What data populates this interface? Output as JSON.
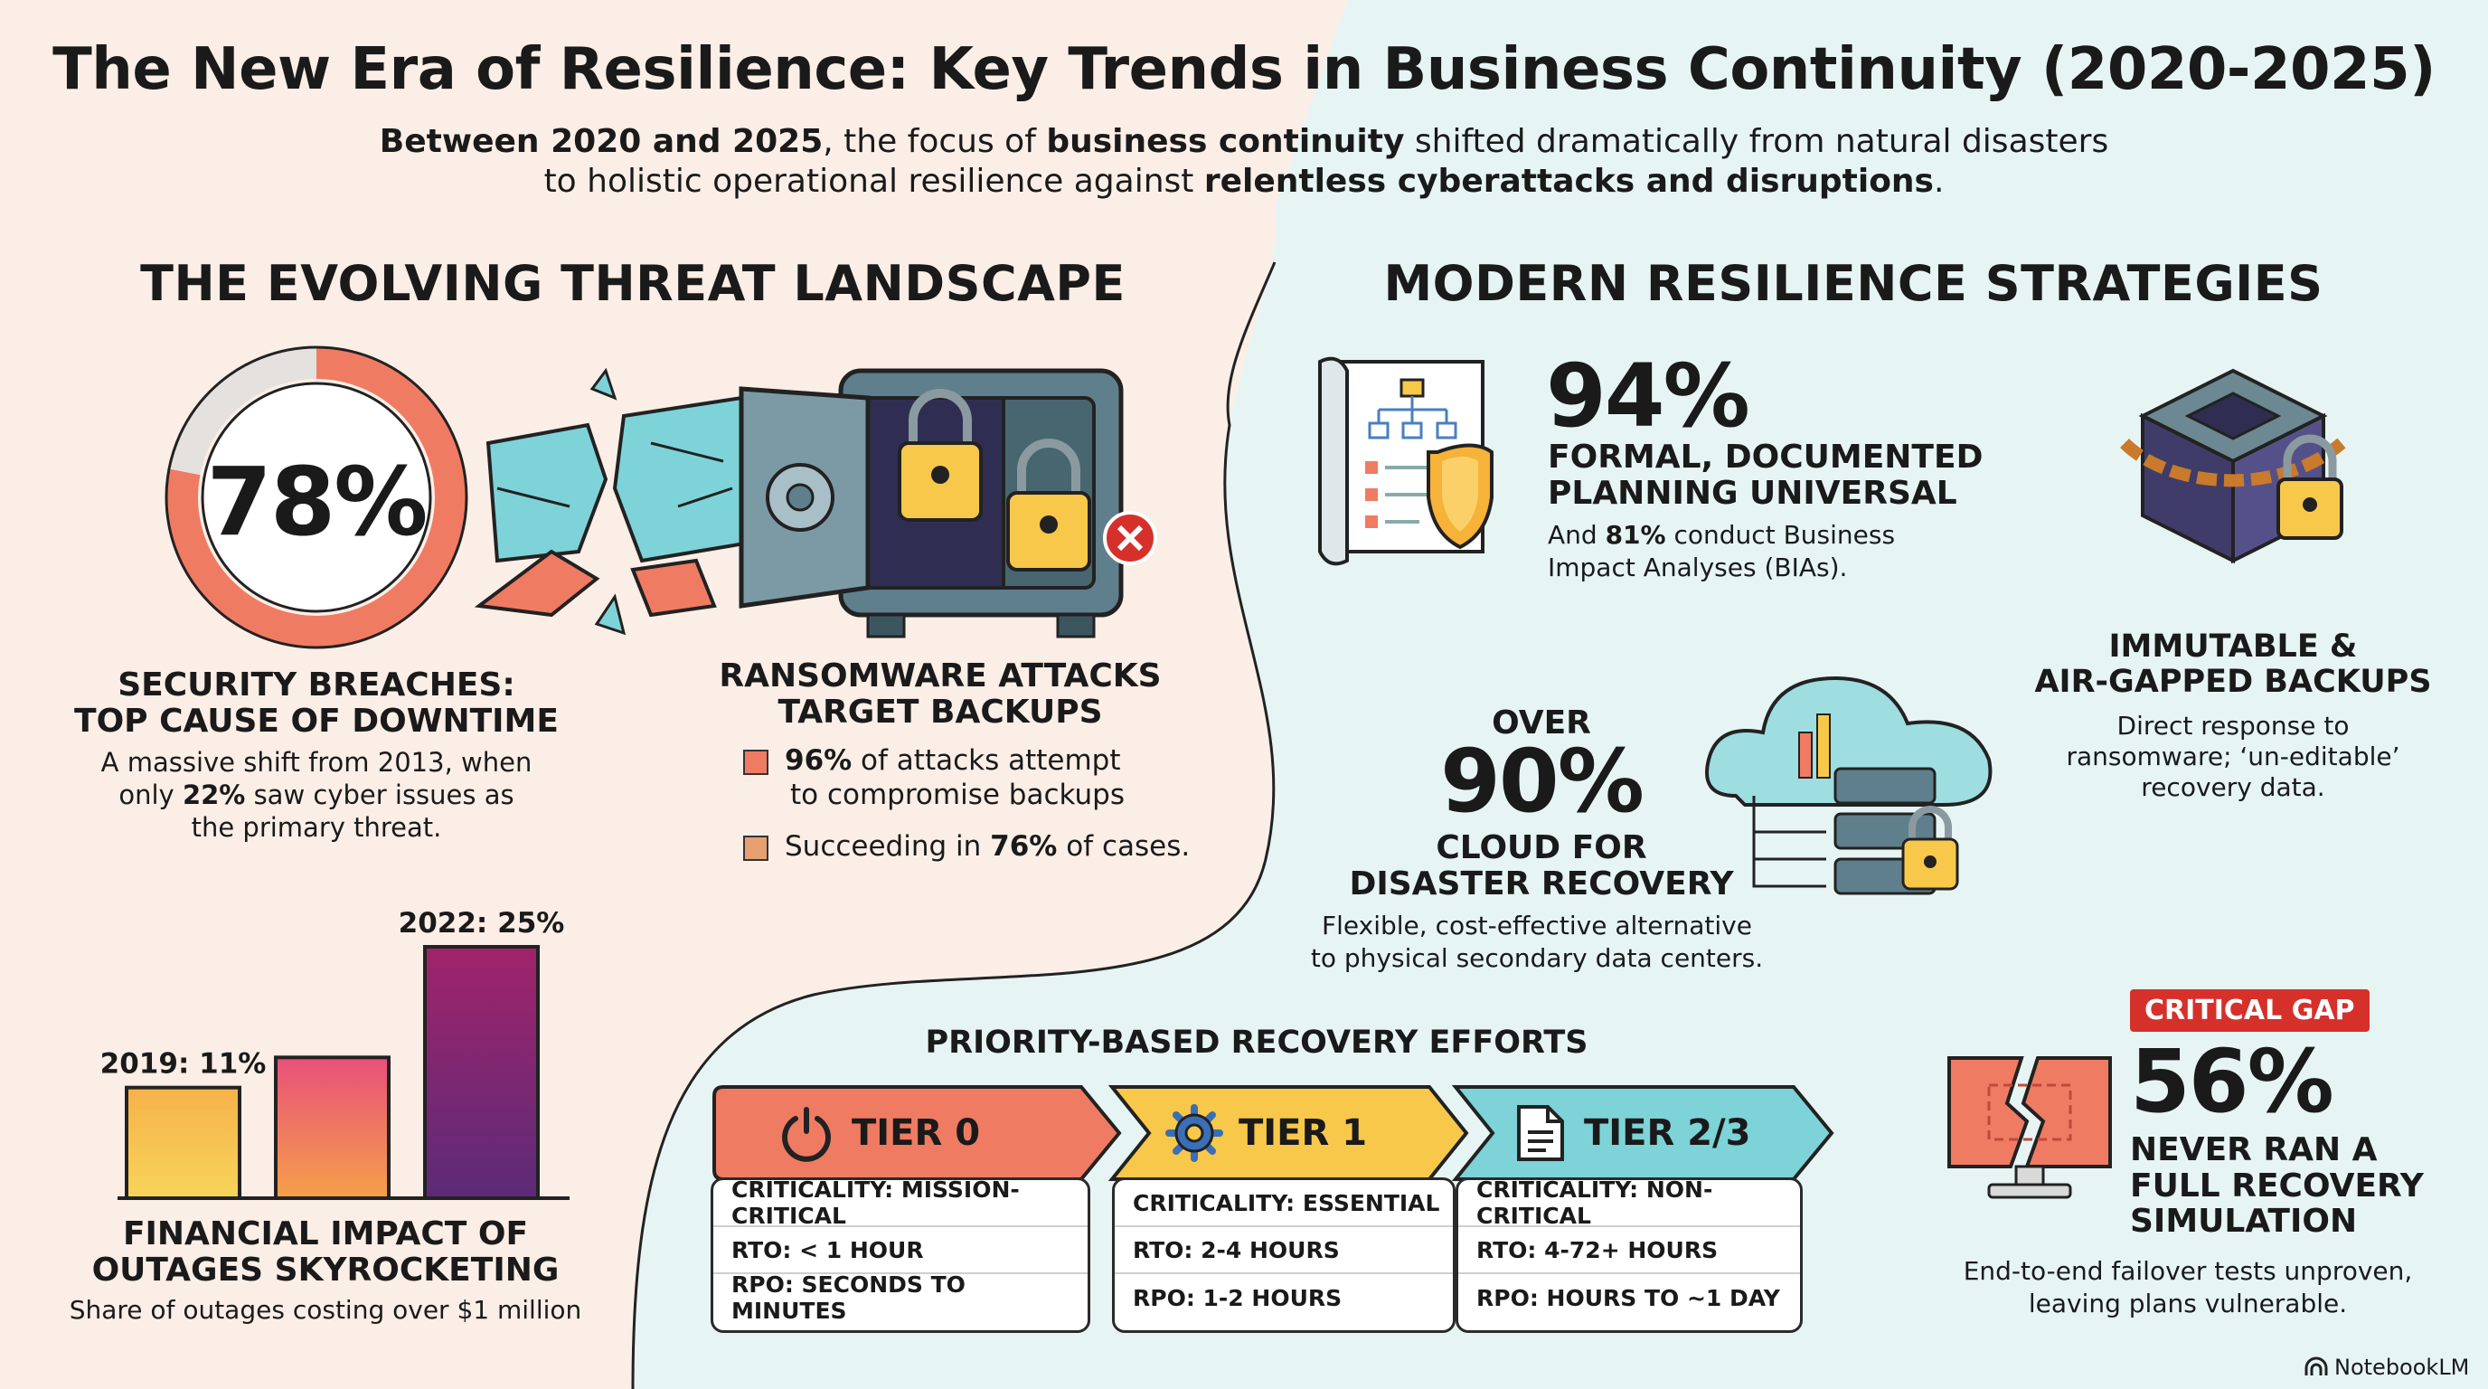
{
  "header": {
    "title": "The New Era of Resilience: Key Trends in Business Continuity (2020-2025)",
    "subtitle_line1": {
      "p1": "Between 2020 and 2025",
      "p2": ", the focus of ",
      "p3": "business continuity",
      "p4": " shifted dramatically from natural disasters"
    },
    "subtitle_line2": {
      "p1": "to holistic operational resilience against ",
      "p2": "relentless cyberattacks and disruptions",
      "p3": "."
    }
  },
  "left_section": {
    "heading": "THE EVOLVING THREAT LANDSCAPE",
    "donut": {
      "value_label": "78%",
      "fraction": 0.78
    },
    "security": {
      "heading_line1": "SECURITY BREACHES:",
      "heading_line2": "TOP CAUSE OF DOWNTIME",
      "text_line1": "A massive shift from 2013, when",
      "text_line2_a": "only ",
      "text_line2_b": "22%",
      "text_line2_c": " saw cyber issues as",
      "text_line3": "the primary threat."
    },
    "ransomware": {
      "heading_line1": "RANSOMWARE ATTACKS",
      "heading_line2": "TARGET BACKUPS",
      "bullet1_a": "96%",
      "bullet1_b": " of attacks attempt",
      "bullet1_line2": "to compromise backups",
      "bullet2_a": "Succeeding in ",
      "bullet2_b": "76%",
      "bullet2_c": " of cases."
    },
    "financial": {
      "bars": [
        {
          "label": "2019: 11%",
          "value": 11
        },
        {
          "label": "",
          "value": 14
        },
        {
          "label": "2022: 25%",
          "value": 25
        }
      ],
      "heading_line1": "FINANCIAL IMPACT OF",
      "heading_line2": "OUTAGES SKYROCKETING",
      "caption": "Share of outages costing over $1 million"
    }
  },
  "right_section": {
    "heading": "MODERN RESILIENCE STRATEGIES",
    "planning": {
      "value": "94%",
      "heading_line1": "FORMAL, DOCUMENTED",
      "heading_line2": "PLANNING UNIVERSAL",
      "text_line1_a": "And ",
      "text_line1_b": "81%",
      "text_line1_c": " conduct Business",
      "text_line2": "Impact Analyses (BIAs)."
    },
    "immutable": {
      "heading_line1": "IMMUTABLE &",
      "heading_line2": "AIR-GAPPED BACKUPS",
      "text_line1": "Direct response to",
      "text_line2": "ransomware; ‘un-editable’",
      "text_line3": "recovery data."
    },
    "cloud": {
      "over": "OVER",
      "value": "90%",
      "heading_line1": "CLOUD FOR",
      "heading_line2": "DISASTER RECOVERY",
      "text_line1": "Flexible, cost-effective alternative",
      "text_line2": "to physical secondary data centers."
    }
  },
  "priority": {
    "heading": "PRIORITY-BASED RECOVERY EFFORTS",
    "tiers": [
      {
        "name": "TIER 0",
        "icon": "power-icon",
        "color": "#f07b63",
        "criticality": "CRITICALITY: MISSION-CRITICAL",
        "rto": "RTO: < 1 HOUR",
        "rpo": "RPO: SECONDS TO MINUTES"
      },
      {
        "name": "TIER 1",
        "icon": "gear-icon",
        "color": "#f7c84a",
        "criticality": "CRITICALITY: ESSENTIAL",
        "rto": "RTO: 2-4 HOURS",
        "rpo": "RPO: 1-2 HOURS"
      },
      {
        "name": "TIER 2/3",
        "icon": "document-icon",
        "color": "#7dd3d8",
        "criticality": "CRITICALITY: NON-CRITICAL",
        "rto": "RTO: 4-72+ HOURS",
        "rpo": "RPO: HOURS TO ~1 DAY"
      }
    ]
  },
  "critical_gap": {
    "badge": "CRITICAL GAP",
    "value": "56%",
    "heading_line1": "NEVER RAN A",
    "heading_line2": "FULL RECOVERY",
    "heading_line3": "SIMULATION",
    "text_line1": "End-to-end failover tests unproven,",
    "text_line2": "leaving plans vulnerable."
  },
  "footer": {
    "brand": "NotebookLM"
  },
  "colors": {
    "coral": "#f07b63",
    "yellow": "#f7c84a",
    "teal": "#7dd3d8",
    "red": "#d6302b",
    "dark": "#1a1a1a"
  }
}
